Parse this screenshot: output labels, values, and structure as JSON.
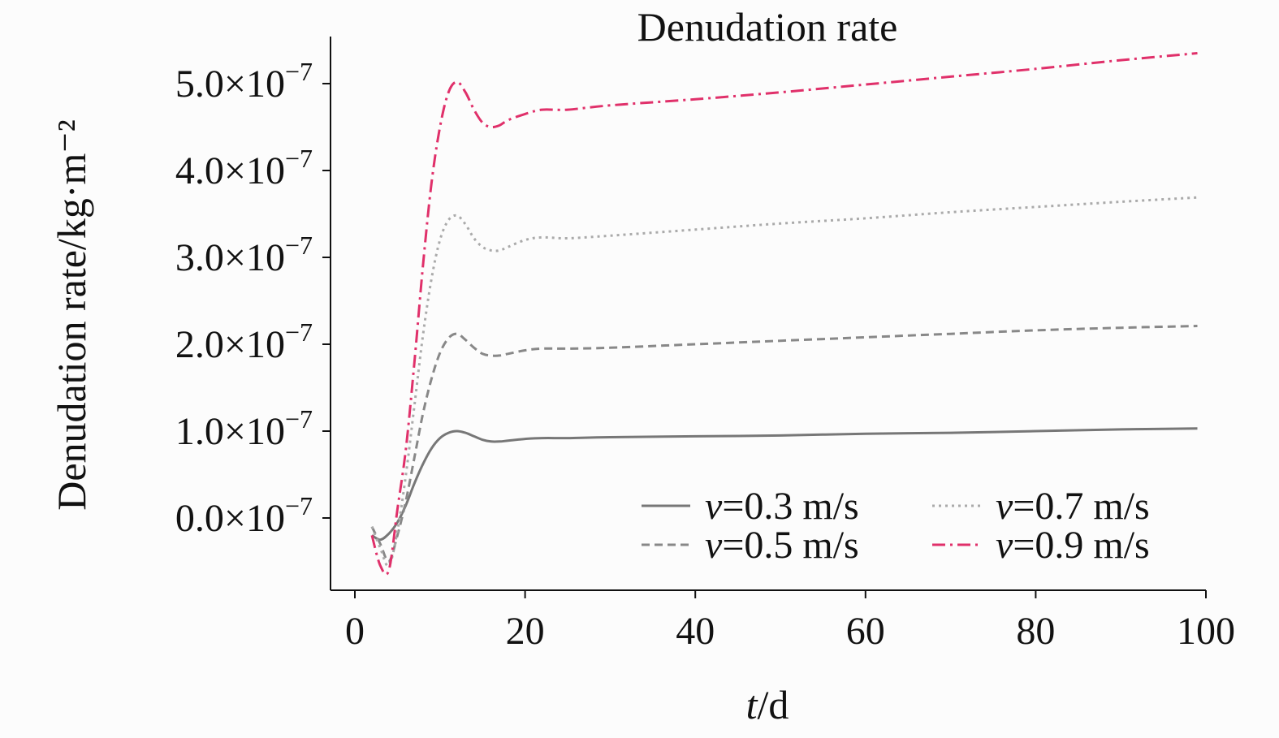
{
  "chart_data": {
    "type": "line",
    "title": "Denudation rate",
    "xlabel": "t/d",
    "xlabel_italic": "t",
    "xlabel_rest": "/d",
    "ylabel": "Denudation rate/kg·m⁻²",
    "xlim": [
      -3,
      100
    ],
    "ylim": [
      -0.9,
      5.5
    ],
    "y_unit_exponent": "−7",
    "xticks": [
      0,
      20,
      40,
      60,
      80,
      100
    ],
    "xtick_labels": [
      "0",
      "20",
      "40",
      "60",
      "80",
      "100"
    ],
    "yticks": [
      0,
      1,
      2,
      3,
      4,
      5
    ],
    "ytick_mantissas": [
      "0.0×10",
      "1.0×10",
      "2.0×10",
      "3.0×10",
      "4.0×10",
      "5.0×10"
    ],
    "legend_position": "lower-right",
    "series": [
      {
        "name": "v=0.3 m/s",
        "legend_italic": "v",
        "legend_rest": "=0.3 m/s",
        "color": "#777777",
        "dash": "",
        "x": [
          2,
          3,
          4,
          5,
          6,
          7,
          8,
          9,
          10,
          11,
          12,
          13,
          14,
          15,
          16,
          17,
          18,
          20,
          22,
          25,
          30,
          40,
          50,
          60,
          70,
          80,
          90,
          99
        ],
        "y": [
          -0.2,
          -0.25,
          -0.18,
          -0.05,
          0.15,
          0.4,
          0.62,
          0.8,
          0.92,
          0.98,
          1.0,
          0.98,
          0.94,
          0.9,
          0.88,
          0.88,
          0.89,
          0.91,
          0.92,
          0.92,
          0.93,
          0.94,
          0.95,
          0.97,
          0.98,
          1.0,
          1.02,
          1.03
        ]
      },
      {
        "name": "v=0.5 m/s",
        "legend_italic": "v",
        "legend_rest": "=0.5 m/s",
        "color": "#888888",
        "dash": "10,6",
        "x": [
          2,
          3,
          4,
          5,
          6,
          7,
          8,
          9,
          10,
          11,
          12,
          13,
          14,
          15,
          16,
          17,
          18,
          20,
          22,
          25,
          30,
          40,
          50,
          60,
          70,
          80,
          90,
          99
        ],
        "y": [
          -0.1,
          -0.3,
          -0.5,
          -0.2,
          0.2,
          0.7,
          1.2,
          1.6,
          1.9,
          2.07,
          2.12,
          2.05,
          1.96,
          1.89,
          1.87,
          1.87,
          1.89,
          1.93,
          1.95,
          1.95,
          1.96,
          2.0,
          2.04,
          2.08,
          2.12,
          2.16,
          2.19,
          2.21
        ]
      },
      {
        "name": "v=0.7 m/s",
        "legend_italic": "v",
        "legend_rest": "=0.7 m/s",
        "color": "#aaaaaa",
        "dash": "3,5",
        "x": [
          2,
          3,
          4,
          5,
          6,
          7,
          8,
          9,
          10,
          11,
          12,
          13,
          14,
          15,
          16,
          17,
          18,
          20,
          22,
          25,
          30,
          40,
          50,
          60,
          70,
          80,
          90,
          99
        ],
        "y": [
          -0.1,
          -0.35,
          -0.55,
          -0.15,
          0.5,
          1.3,
          2.1,
          2.75,
          3.2,
          3.43,
          3.48,
          3.38,
          3.22,
          3.12,
          3.08,
          3.08,
          3.12,
          3.2,
          3.23,
          3.22,
          3.25,
          3.32,
          3.39,
          3.45,
          3.52,
          3.58,
          3.64,
          3.69
        ]
      },
      {
        "name": "v=0.9 m/s",
        "legend_italic": "v",
        "legend_rest": "=0.9 m/s",
        "color": "#e0306a",
        "dash": "16,6,3,6",
        "x": [
          2,
          3,
          4,
          5,
          6,
          7,
          8,
          9,
          10,
          11,
          12,
          13,
          14,
          15,
          16,
          17,
          18,
          20,
          22,
          25,
          30,
          40,
          50,
          60,
          70,
          80,
          90,
          99
        ],
        "y": [
          -0.2,
          -0.55,
          -0.6,
          0.1,
          0.8,
          1.8,
          2.9,
          3.85,
          4.5,
          4.9,
          5.02,
          4.9,
          4.7,
          4.55,
          4.5,
          4.52,
          4.58,
          4.65,
          4.7,
          4.7,
          4.75,
          4.82,
          4.9,
          4.99,
          5.08,
          5.17,
          5.27,
          5.35
        ]
      }
    ]
  }
}
